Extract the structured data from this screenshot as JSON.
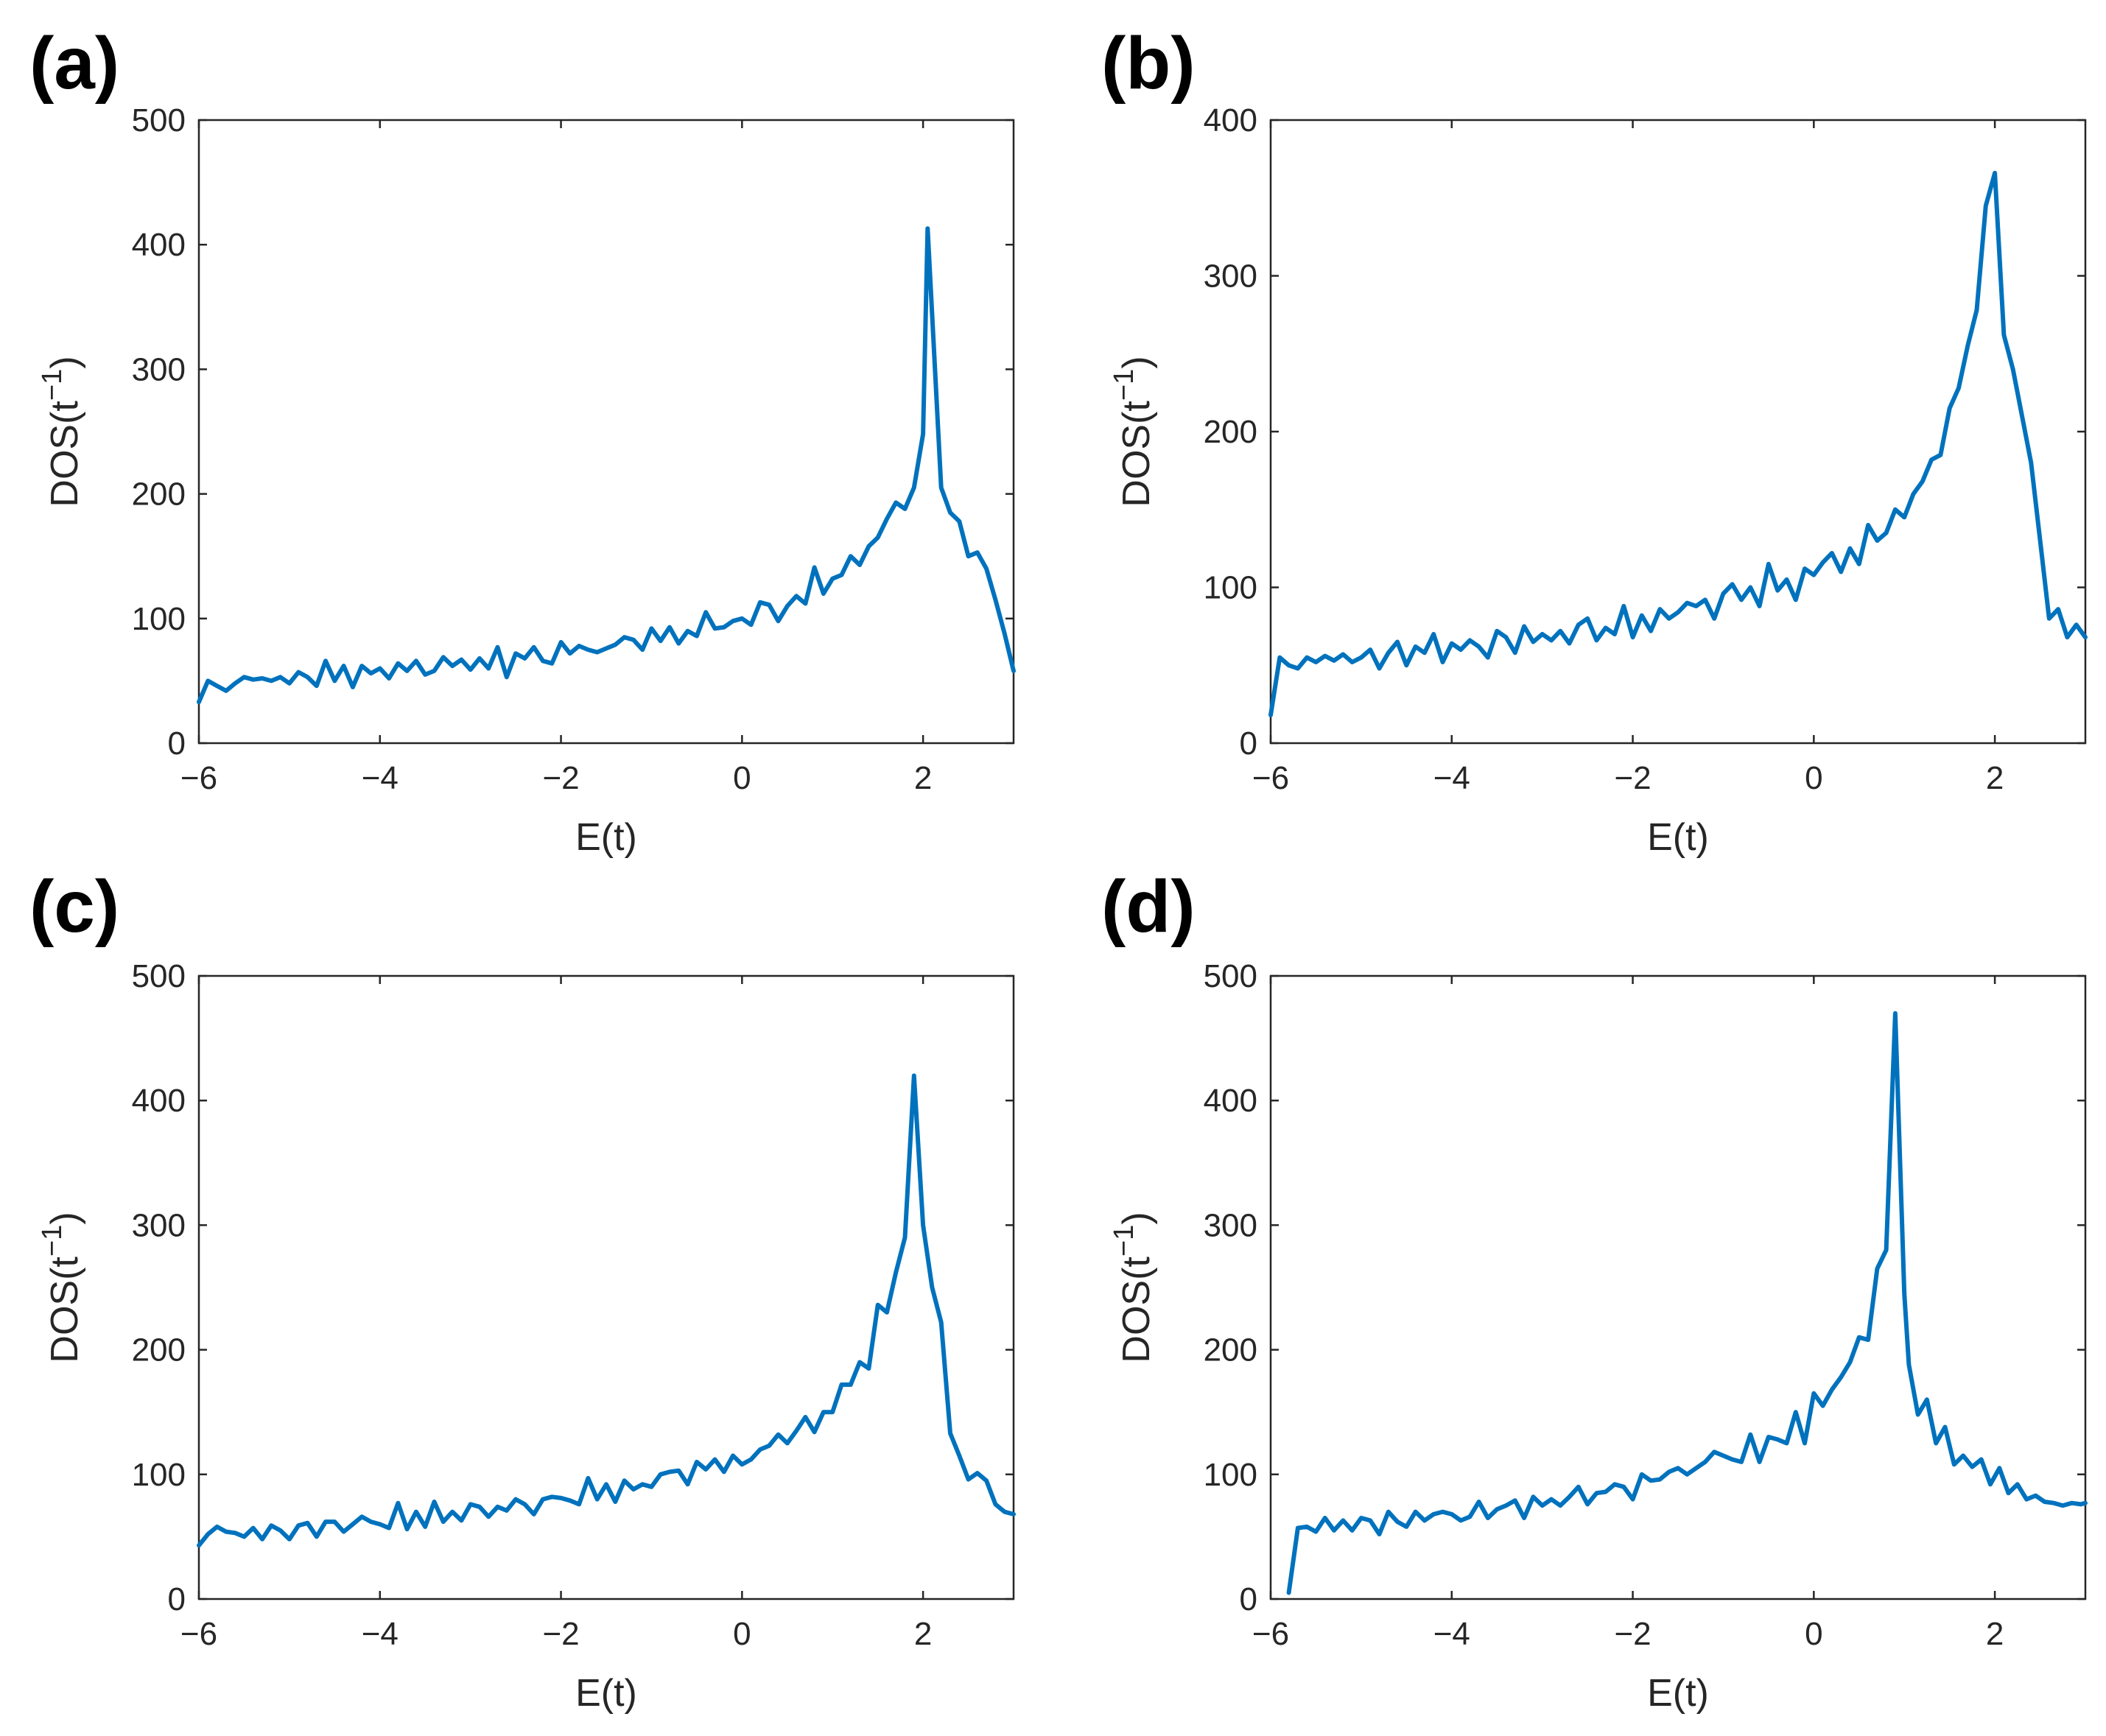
{
  "colors": {
    "series": "#0072BD",
    "axis": "#262626"
  },
  "chart_data": [
    {
      "type": "line",
      "panel_label": "(a)",
      "xlabel": "E(t)",
      "ylabel": {
        "base": "DOS(t",
        "superscript": "−1",
        "close": ")"
      },
      "xlim": [
        -6,
        3
      ],
      "ylim": [
        0,
        500
      ],
      "xticks": [
        -6,
        -4,
        -2,
        0,
        2
      ],
      "xtick_labels": [
        "−6",
        "−4",
        "−2",
        "0",
        "2"
      ],
      "yticks": [
        0,
        100,
        200,
        300,
        400,
        500
      ],
      "ytick_labels": [
        "0",
        "100",
        "200",
        "300",
        "400",
        "500"
      ],
      "x": [
        -6,
        -5.9,
        -5.8,
        -5.7,
        -5.6,
        -5.5,
        -5.4,
        -5.3,
        -5.2,
        -5.1,
        -5,
        -4.9,
        -4.8,
        -4.7,
        -4.6,
        -4.5,
        -4.4,
        -4.3,
        -4.2,
        -4.1,
        -4,
        -3.9,
        -3.8,
        -3.7,
        -3.6,
        -3.5,
        -3.4,
        -3.3,
        -3.2,
        -3.1,
        -3,
        -2.9,
        -2.8,
        -2.7,
        -2.6,
        -2.5,
        -2.4,
        -2.3,
        -2.2,
        -2.1,
        -2,
        -1.9,
        -1.8,
        -1.7,
        -1.6,
        -1.5,
        -1.4,
        -1.3,
        -1.2,
        -1.1,
        -1,
        -0.9,
        -0.8,
        -0.7,
        -0.6,
        -0.5,
        -0.4,
        -0.3,
        -0.2,
        -0.1,
        0,
        0.1,
        0.2,
        0.3,
        0.4,
        0.5,
        0.6,
        0.7,
        0.8,
        0.9,
        1,
        1.1,
        1.2,
        1.3,
        1.4,
        1.5,
        1.6,
        1.7,
        1.8,
        1.9,
        2,
        2.05,
        2.2,
        2.3,
        2.4,
        2.5,
        2.6,
        2.7,
        2.8,
        2.9,
        3
      ],
      "series": [
        {
          "name": "DOS",
          "values": [
            33,
            50,
            46,
            42,
            48,
            53,
            51,
            52,
            50,
            53,
            48,
            57,
            53,
            46,
            66,
            50,
            62,
            45,
            62,
            56,
            60,
            52,
            64,
            58,
            66,
            55,
            58,
            69,
            62,
            67,
            59,
            68,
            60,
            77,
            53,
            72,
            68,
            77,
            66,
            64,
            81,
            72,
            78,
            75,
            73,
            76,
            79,
            85,
            83,
            75,
            92,
            82,
            93,
            80,
            90,
            86,
            105,
            92,
            93,
            98,
            100,
            95,
            113,
            111,
            98,
            110,
            118,
            112,
            141,
            120,
            132,
            135,
            150,
            143,
            158,
            165,
            180,
            193,
            188,
            205,
            248,
            413,
            205,
            185,
            178,
            150,
            153,
            140,
            115,
            88,
            58
          ]
        }
      ]
    },
    {
      "type": "line",
      "panel_label": "(b)",
      "xlabel": "E(t)",
      "ylabel": {
        "base": "DOS(t",
        "superscript": "−1",
        "close": ")"
      },
      "xlim": [
        -6,
        3
      ],
      "ylim": [
        0,
        400
      ],
      "xticks": [
        -6,
        -4,
        -2,
        0,
        2
      ],
      "xtick_labels": [
        "−6",
        "−4",
        "−2",
        "0",
        "2"
      ],
      "yticks": [
        0,
        100,
        200,
        300,
        400
      ],
      "ytick_labels": [
        "0",
        "100",
        "200",
        "300",
        "400"
      ],
      "x": [
        -6,
        -5.9,
        -5.8,
        -5.7,
        -5.6,
        -5.5,
        -5.4,
        -5.3,
        -5.2,
        -5.1,
        -5,
        -4.9,
        -4.8,
        -4.7,
        -4.6,
        -4.5,
        -4.4,
        -4.3,
        -4.2,
        -4.1,
        -4,
        -3.9,
        -3.8,
        -3.7,
        -3.6,
        -3.5,
        -3.4,
        -3.3,
        -3.2,
        -3.1,
        -3,
        -2.9,
        -2.8,
        -2.7,
        -2.6,
        -2.5,
        -2.4,
        -2.3,
        -2.2,
        -2.1,
        -2,
        -1.9,
        -1.8,
        -1.7,
        -1.6,
        -1.5,
        -1.4,
        -1.3,
        -1.2,
        -1.1,
        -1,
        -0.9,
        -0.8,
        -0.7,
        -0.6,
        -0.5,
        -0.4,
        -0.3,
        -0.2,
        -0.1,
        0,
        0.1,
        0.2,
        0.3,
        0.4,
        0.5,
        0.6,
        0.7,
        0.8,
        0.9,
        1,
        1.1,
        1.2,
        1.3,
        1.4,
        1.5,
        1.6,
        1.7,
        1.8,
        1.9,
        2,
        2.1,
        2.2,
        2.3,
        2.4,
        2.5,
        2.6,
        2.7,
        2.8,
        2.9,
        3
      ],
      "series": [
        {
          "name": "DOS",
          "values": [
            18,
            55,
            50,
            48,
            55,
            52,
            56,
            53,
            57,
            52,
            55,
            60,
            48,
            58,
            65,
            50,
            62,
            58,
            70,
            52,
            64,
            60,
            66,
            62,
            55,
            72,
            68,
            58,
            75,
            65,
            70,
            66,
            72,
            64,
            76,
            80,
            66,
            74,
            70,
            88,
            68,
            82,
            72,
            86,
            80,
            84,
            90,
            88,
            92,
            80,
            96,
            102,
            92,
            100,
            88,
            115,
            98,
            105,
            92,
            112,
            108,
            116,
            122,
            110,
            125,
            115,
            140,
            130,
            135,
            150,
            145,
            160,
            168,
            182,
            185,
            215,
            228,
            255,
            278,
            345,
            366,
            262,
            240,
            210,
            180,
            130,
            80,
            86,
            68,
            76,
            68
          ]
        }
      ]
    },
    {
      "type": "line",
      "panel_label": "(c)",
      "xlabel": "E(t)",
      "ylabel": {
        "base": "DOS(t",
        "superscript": "−1",
        "close": ")"
      },
      "xlim": [
        -6,
        3
      ],
      "ylim": [
        0,
        500
      ],
      "xticks": [
        -6,
        -4,
        -2,
        0,
        2
      ],
      "xtick_labels": [
        "−6",
        "−4",
        "−2",
        "0",
        "2"
      ],
      "yticks": [
        0,
        100,
        200,
        300,
        400,
        500
      ],
      "ytick_labels": [
        "0",
        "100",
        "200",
        "300",
        "400",
        "500"
      ],
      "x": [
        -6,
        -5.9,
        -5.8,
        -5.7,
        -5.6,
        -5.5,
        -5.4,
        -5.3,
        -5.2,
        -5.1,
        -5,
        -4.9,
        -4.8,
        -4.7,
        -4.6,
        -4.5,
        -4.4,
        -4.3,
        -4.2,
        -4.1,
        -4,
        -3.9,
        -3.8,
        -3.7,
        -3.6,
        -3.5,
        -3.4,
        -3.3,
        -3.2,
        -3.1,
        -3,
        -2.9,
        -2.8,
        -2.7,
        -2.6,
        -2.5,
        -2.4,
        -2.3,
        -2.2,
        -2.1,
        -2,
        -1.9,
        -1.8,
        -1.7,
        -1.6,
        -1.5,
        -1.4,
        -1.3,
        -1.2,
        -1.1,
        -1,
        -0.9,
        -0.8,
        -0.7,
        -0.6,
        -0.5,
        -0.4,
        -0.3,
        -0.2,
        -0.1,
        0,
        0.1,
        0.2,
        0.3,
        0.4,
        0.5,
        0.6,
        0.7,
        0.8,
        0.9,
        1,
        1.1,
        1.2,
        1.3,
        1.4,
        1.5,
        1.6,
        1.7,
        1.8,
        1.9,
        2,
        2.1,
        2.2,
        2.3,
        2.4,
        2.5,
        2.6,
        2.7,
        2.8,
        2.9,
        3
      ],
      "series": [
        {
          "name": "DOS",
          "values": [
            43,
            52,
            58,
            54,
            53,
            50,
            57,
            48,
            59,
            55,
            48,
            59,
            61,
            50,
            62,
            62,
            54,
            60,
            66,
            62,
            60,
            57,
            77,
            56,
            70,
            58,
            78,
            62,
            70,
            63,
            76,
            74,
            66,
            74,
            71,
            80,
            76,
            68,
            80,
            82,
            81,
            79,
            76,
            97,
            80,
            92,
            78,
            95,
            88,
            92,
            90,
            100,
            102,
            103,
            92,
            110,
            104,
            112,
            102,
            115,
            108,
            112,
            120,
            123,
            132,
            125,
            135,
            146,
            134,
            150,
            150,
            172,
            172,
            190,
            185,
            236,
            230,
            262,
            290,
            420,
            300,
            250,
            222,
            133,
            115,
            96,
            101,
            95,
            76,
            70,
            68
          ]
        }
      ]
    },
    {
      "type": "line",
      "panel_label": "(d)",
      "xlabel": "E(t)",
      "ylabel": {
        "base": "DOS(t",
        "superscript": "−1",
        "close": ")"
      },
      "xlim": [
        -6,
        3
      ],
      "ylim": [
        0,
        500
      ],
      "xticks": [
        -6,
        -4,
        -2,
        0,
        2
      ],
      "xtick_labels": [
        "−6",
        "−4",
        "−2",
        "0",
        "2"
      ],
      "yticks": [
        0,
        100,
        200,
        300,
        400,
        500
      ],
      "ytick_labels": [
        "0",
        "100",
        "200",
        "300",
        "400",
        "500"
      ],
      "x": [
        -5.8,
        -5.7,
        -5.6,
        -5.5,
        -5.4,
        -5.3,
        -5.2,
        -5.1,
        -5,
        -4.9,
        -4.8,
        -4.7,
        -4.6,
        -4.5,
        -4.4,
        -4.3,
        -4.2,
        -4.1,
        -4,
        -3.9,
        -3.8,
        -3.7,
        -3.6,
        -3.5,
        -3.4,
        -3.3,
        -3.2,
        -3.1,
        -3,
        -2.9,
        -2.8,
        -2.7,
        -2.6,
        -2.5,
        -2.4,
        -2.3,
        -2.2,
        -2.1,
        -2,
        -1.9,
        -1.8,
        -1.7,
        -1.6,
        -1.5,
        -1.4,
        -1.3,
        -1.2,
        -1.1,
        -1,
        -0.9,
        -0.8,
        -0.7,
        -0.6,
        -0.5,
        -0.4,
        -0.3,
        -0.2,
        -0.1,
        0,
        0.1,
        0.2,
        0.3,
        0.4,
        0.5,
        0.6,
        0.7,
        0.8,
        0.9,
        1,
        1.05,
        1.15,
        1.25,
        1.35,
        1.45,
        1.55,
        1.65,
        1.75,
        1.85,
        1.95,
        2.05,
        2.15,
        2.25,
        2.35,
        2.45,
        2.55,
        2.65,
        2.75,
        2.85,
        2.95,
        3
      ],
      "series": [
        {
          "name": "DOS",
          "values": [
            5,
            57,
            58,
            54,
            65,
            55,
            63,
            55,
            65,
            63,
            52,
            70,
            62,
            58,
            70,
            63,
            68,
            70,
            68,
            63,
            66,
            78,
            65,
            72,
            75,
            79,
            65,
            82,
            75,
            80,
            75,
            82,
            90,
            76,
            85,
            86,
            92,
            90,
            80,
            100,
            95,
            96,
            102,
            105,
            100,
            105,
            110,
            118,
            115,
            112,
            110,
            132,
            110,
            130,
            128,
            125,
            150,
            125,
            165,
            155,
            168,
            178,
            190,
            210,
            208,
            265,
            280,
            470,
            245,
            188,
            148,
            160,
            125,
            138,
            108,
            115,
            106,
            112,
            92,
            105,
            85,
            92,
            80,
            83,
            78,
            77,
            75,
            77,
            76,
            77
          ]
        }
      ]
    }
  ]
}
